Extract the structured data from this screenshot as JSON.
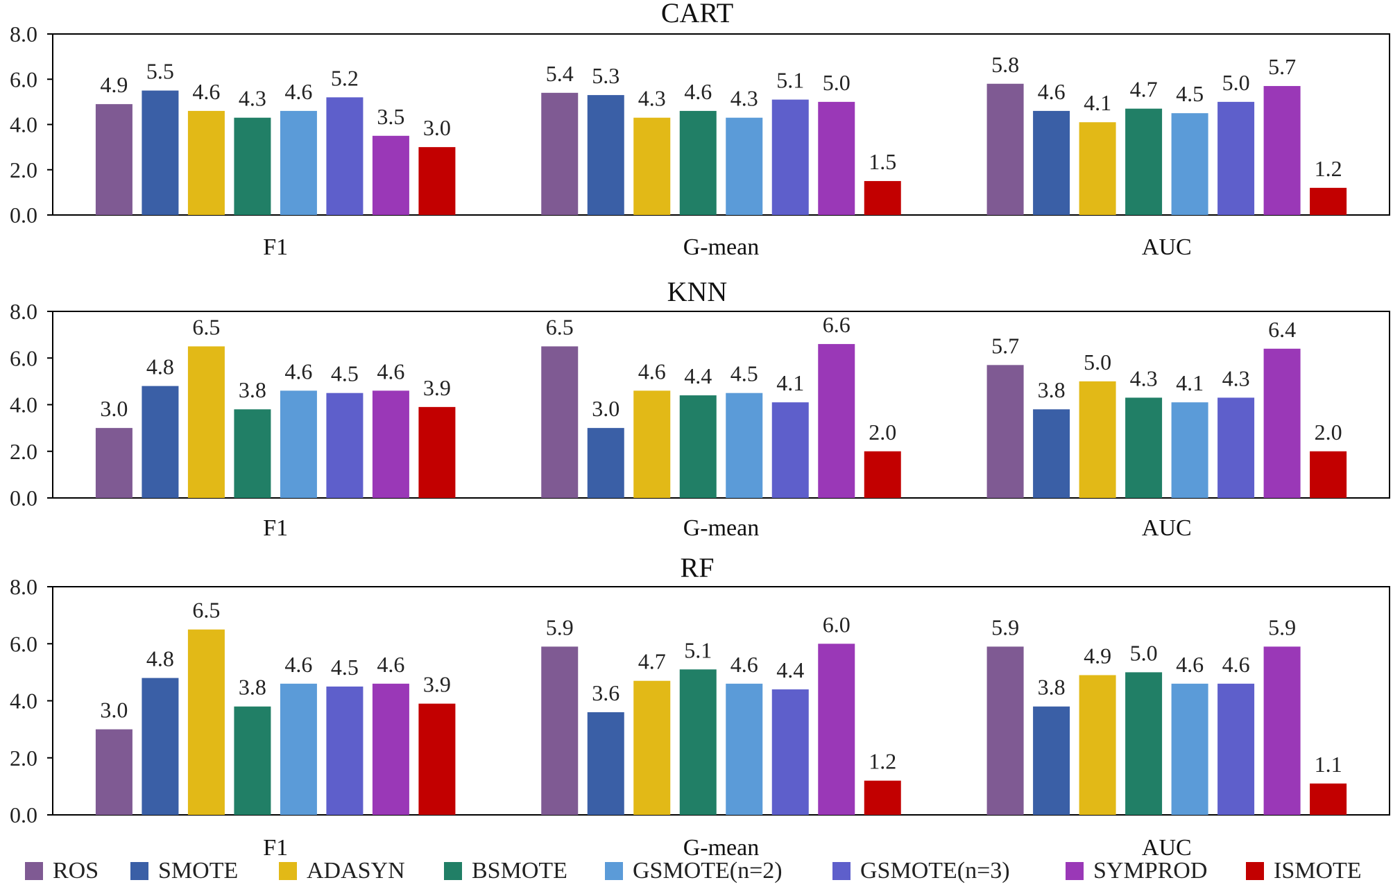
{
  "chart_data": {
    "type": "bar",
    "series_names": [
      "ROS",
      "SMOTE",
      "ADASYN",
      "BSMOTE",
      "GSMOTE(n=2)",
      "GSMOTE(n=3)",
      "SYMPROD",
      "ISMOTE"
    ],
    "colors": [
      "#7f5a93",
      "#3a5fa6",
      "#e2b917",
      "#217f66",
      "#5b9bd8",
      "#5e5fcb",
      "#9a38b7",
      "#c20000"
    ],
    "categories": [
      "F1",
      "G-mean",
      "AUC"
    ],
    "ylim": [
      0,
      8
    ],
    "yticks": [
      "0.0",
      "2.0",
      "4.0",
      "6.0",
      "8.0"
    ],
    "panels": [
      {
        "title": "CART",
        "values": [
          [
            4.9,
            5.5,
            4.6,
            4.3,
            4.6,
            5.2,
            3.5,
            3.0
          ],
          [
            5.4,
            5.3,
            4.3,
            4.6,
            4.3,
            5.1,
            5.0,
            1.5
          ],
          [
            5.8,
            4.6,
            4.1,
            4.7,
            4.5,
            5.0,
            5.7,
            1.2
          ]
        ],
        "labels": [
          [
            "4.9",
            "5.5",
            "4.6",
            "4.3",
            "4.6",
            "5.2",
            "3.5",
            "3.0"
          ],
          [
            "5.4",
            "5.3",
            "4.3",
            "4.6",
            "4.3",
            "5.1",
            "5.0",
            "1.5"
          ],
          [
            "5.8",
            "4.6",
            "4.1",
            "4.7",
            "4.5",
            "5.0",
            "5.7",
            "1.2"
          ]
        ]
      },
      {
        "title": "KNN",
        "values": [
          [
            3.0,
            4.8,
            6.5,
            3.8,
            4.6,
            4.5,
            4.6,
            3.9
          ],
          [
            6.5,
            3.0,
            4.6,
            4.4,
            4.5,
            4.1,
            6.6,
            2.0
          ],
          [
            5.7,
            3.8,
            5.0,
            4.3,
            4.1,
            4.3,
            6.4,
            2.0
          ]
        ],
        "labels": [
          [
            "3.0",
            "4.8",
            "6.5",
            "3.8",
            "4.6",
            "4.5",
            "4.6",
            "3.9"
          ],
          [
            "6.5",
            "3.0",
            "4.6",
            "4.4",
            "4.5",
            "4.1",
            "6.6",
            "2.0"
          ],
          [
            "5.7",
            "3.8",
            "5.0",
            "4.3",
            "4.1",
            "4.3",
            "6.4",
            "2.0"
          ]
        ]
      },
      {
        "title": "RF",
        "values": [
          [
            3.0,
            4.8,
            6.5,
            3.8,
            4.6,
            4.5,
            4.6,
            3.9
          ],
          [
            5.9,
            3.6,
            4.7,
            5.1,
            4.6,
            4.4,
            6.0,
            1.2
          ],
          [
            5.9,
            3.8,
            4.9,
            5.0,
            4.6,
            4.6,
            5.9,
            1.1
          ]
        ],
        "labels": [
          [
            "3.0",
            "4.8",
            "6.5",
            "3.8",
            "4.6",
            "4.5",
            "4.6",
            "3.9"
          ],
          [
            "5.9",
            "3.6",
            "4.7",
            "5.1",
            "4.6",
            "4.4",
            "6.0",
            "1.2"
          ],
          [
            "5.9",
            "3.8",
            "4.9",
            "5.0",
            "4.6",
            "4.6",
            "5.9",
            "1.1"
          ]
        ]
      }
    ]
  }
}
